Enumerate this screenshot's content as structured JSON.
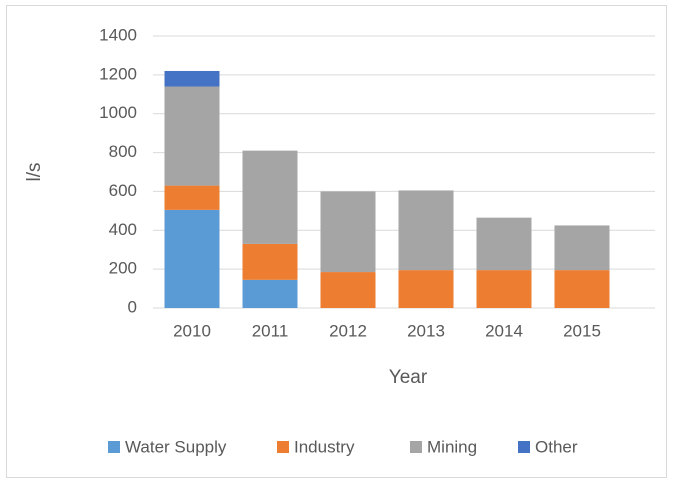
{
  "chart_data": {
    "type": "stacked_bar",
    "categories": [
      "2010",
      "2011",
      "2012",
      "2013",
      "2014",
      "2015"
    ],
    "series": [
      {
        "name": "Water Supply",
        "color": "#5b9bd5",
        "values": [
          505,
          145,
          0,
          0,
          0,
          0
        ]
      },
      {
        "name": "Industry",
        "color": "#ed7d31",
        "values": [
          125,
          185,
          185,
          195,
          195,
          195
        ]
      },
      {
        "name": "Mining",
        "color": "#a5a5a5",
        "values": [
          510,
          480,
          415,
          410,
          270,
          230
        ]
      },
      {
        "name": "Other",
        "color": "#4472c4",
        "values": [
          80,
          0,
          0,
          0,
          0,
          0
        ]
      }
    ],
    "x_label": "Year",
    "y_label": "l/s",
    "ylim": [
      0,
      1400
    ],
    "yticks": [
      0,
      200,
      400,
      600,
      800,
      1000,
      1200,
      1400
    ],
    "grid": true,
    "legend": "bottom"
  }
}
